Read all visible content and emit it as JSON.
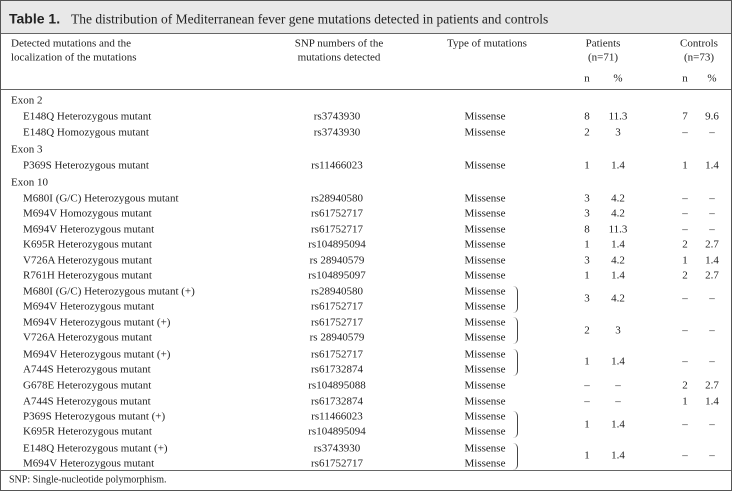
{
  "title": {
    "label": "Table 1.",
    "text": "The distribution of Mediterranean fever gene mutations detected in patients and controls"
  },
  "columns": {
    "mutation": [
      "Detected mutations and the",
      "localization of the mutations"
    ],
    "snp": [
      "SNP numbers of the",
      "mutations detected"
    ],
    "type": "Type of mutations",
    "patients": [
      "Patients",
      "(n=71)"
    ],
    "controls": [
      "Controls",
      "(n=73)"
    ],
    "patients_sub": [
      "n",
      "%"
    ],
    "controls_sub": [
      "n",
      "%"
    ]
  },
  "sections": [
    {
      "title": "Exon 2",
      "rows": [
        {
          "mutations": [
            "E148Q Heterozygous mutant"
          ],
          "snps": [
            "rs3743930"
          ],
          "types": [
            "Missense"
          ],
          "patients": [
            8,
            11.3
          ],
          "controls": [
            7,
            9.6
          ]
        },
        {
          "mutations": [
            "E148Q Homozygous mutant"
          ],
          "snps": [
            "rs3743930"
          ],
          "types": [
            "Missense"
          ],
          "patients": [
            2,
            3
          ],
          "controls": [
            "–",
            "–"
          ]
        }
      ]
    },
    {
      "title": "Exon 3",
      "rows": [
        {
          "mutations": [
            "P369S Heterozygous mutant"
          ],
          "snps": [
            "rs11466023"
          ],
          "types": [
            "Missense"
          ],
          "patients": [
            1,
            1.4
          ],
          "controls": [
            1,
            1.4
          ]
        }
      ]
    },
    {
      "title": "Exon 10",
      "rows": [
        {
          "mutations": [
            "M680I (G/C) Heterozygous mutant"
          ],
          "snps": [
            "rs28940580"
          ],
          "types": [
            "Missense"
          ],
          "patients": [
            3,
            4.2
          ],
          "controls": [
            "–",
            "–"
          ]
        },
        {
          "mutations": [
            "M694V Homozygous mutant"
          ],
          "snps": [
            "rs61752717"
          ],
          "types": [
            "Missense"
          ],
          "patients": [
            3,
            4.2
          ],
          "controls": [
            "–",
            "–"
          ]
        },
        {
          "mutations": [
            "M694V Heterozygous mutant"
          ],
          "snps": [
            "rs61752717"
          ],
          "types": [
            "Missense"
          ],
          "patients": [
            8,
            11.3
          ],
          "controls": [
            "–",
            "–"
          ]
        },
        {
          "mutations": [
            "K695R Heterozygous mutant"
          ],
          "snps": [
            "rs104895094"
          ],
          "types": [
            "Missense"
          ],
          "patients": [
            1,
            1.4
          ],
          "controls": [
            2,
            2.7
          ]
        },
        {
          "mutations": [
            "V726A Heterozygous mutant"
          ],
          "snps": [
            "rs 28940579"
          ],
          "types": [
            "Missense"
          ],
          "patients": [
            3,
            4.2
          ],
          "controls": [
            1,
            1.4
          ]
        },
        {
          "mutations": [
            "R761H Heterozygous mutant"
          ],
          "snps": [
            "rs104895097"
          ],
          "types": [
            "Missense"
          ],
          "patients": [
            1,
            1.4
          ],
          "controls": [
            2,
            2.7
          ]
        },
        {
          "mutations": [
            "M680I (G/C) Heterozygous mutant (+)",
            "M694V Heterozygous mutant"
          ],
          "snps": [
            "rs28940580",
            "rs61752717"
          ],
          "types": [
            "Missense",
            "Missense"
          ],
          "patients": [
            3,
            4.2
          ],
          "controls": [
            "–",
            "–"
          ]
        },
        {
          "mutations": [
            "M694V Heterozygous mutant (+)",
            "V726A Heterozygous mutant"
          ],
          "snps": [
            "rs61752717",
            "rs 28940579"
          ],
          "types": [
            "Missense",
            "Missense"
          ],
          "patients": [
            2,
            3
          ],
          "controls": [
            "–",
            "–"
          ]
        },
        {
          "mutations": [
            "M694V Heterozygous mutant (+)",
            "A744S Heterozygous mutant"
          ],
          "snps": [
            "rs61752717",
            "rs61732874"
          ],
          "types": [
            "Missense",
            "Missense"
          ],
          "patients": [
            1,
            1.4
          ],
          "controls": [
            "–",
            "–"
          ]
        },
        {
          "mutations": [
            "G678E Heterozygous mutant"
          ],
          "snps": [
            "rs104895088"
          ],
          "types": [
            "Missense"
          ],
          "patients": [
            "–",
            "–"
          ],
          "controls": [
            2,
            2.7
          ]
        },
        {
          "mutations": [
            "A744S Heterozygous mutant"
          ],
          "snps": [
            "rs61732874"
          ],
          "types": [
            "Missense"
          ],
          "patients": [
            "–",
            "–"
          ],
          "controls": [
            1,
            1.4
          ]
        },
        {
          "mutations": [
            "P369S Heterozygous mutant (+)",
            "K695R Heterozygous mutant"
          ],
          "snps": [
            "rs11466023",
            "rs104895094"
          ],
          "types": [
            "Missense",
            "Missense"
          ],
          "patients": [
            1,
            1.4
          ],
          "controls": [
            "–",
            "–"
          ]
        },
        {
          "mutations": [
            "E148Q Heterozygous mutant (+)",
            "M694V Heterozygous mutant"
          ],
          "snps": [
            "rs3743930",
            "rs61752717"
          ],
          "types": [
            "Missense",
            "Missense"
          ],
          "patients": [
            1,
            1.4
          ],
          "controls": [
            "–",
            "–"
          ]
        }
      ]
    }
  ],
  "footnote": "SNP: Single-nucleotide polymorphism."
}
